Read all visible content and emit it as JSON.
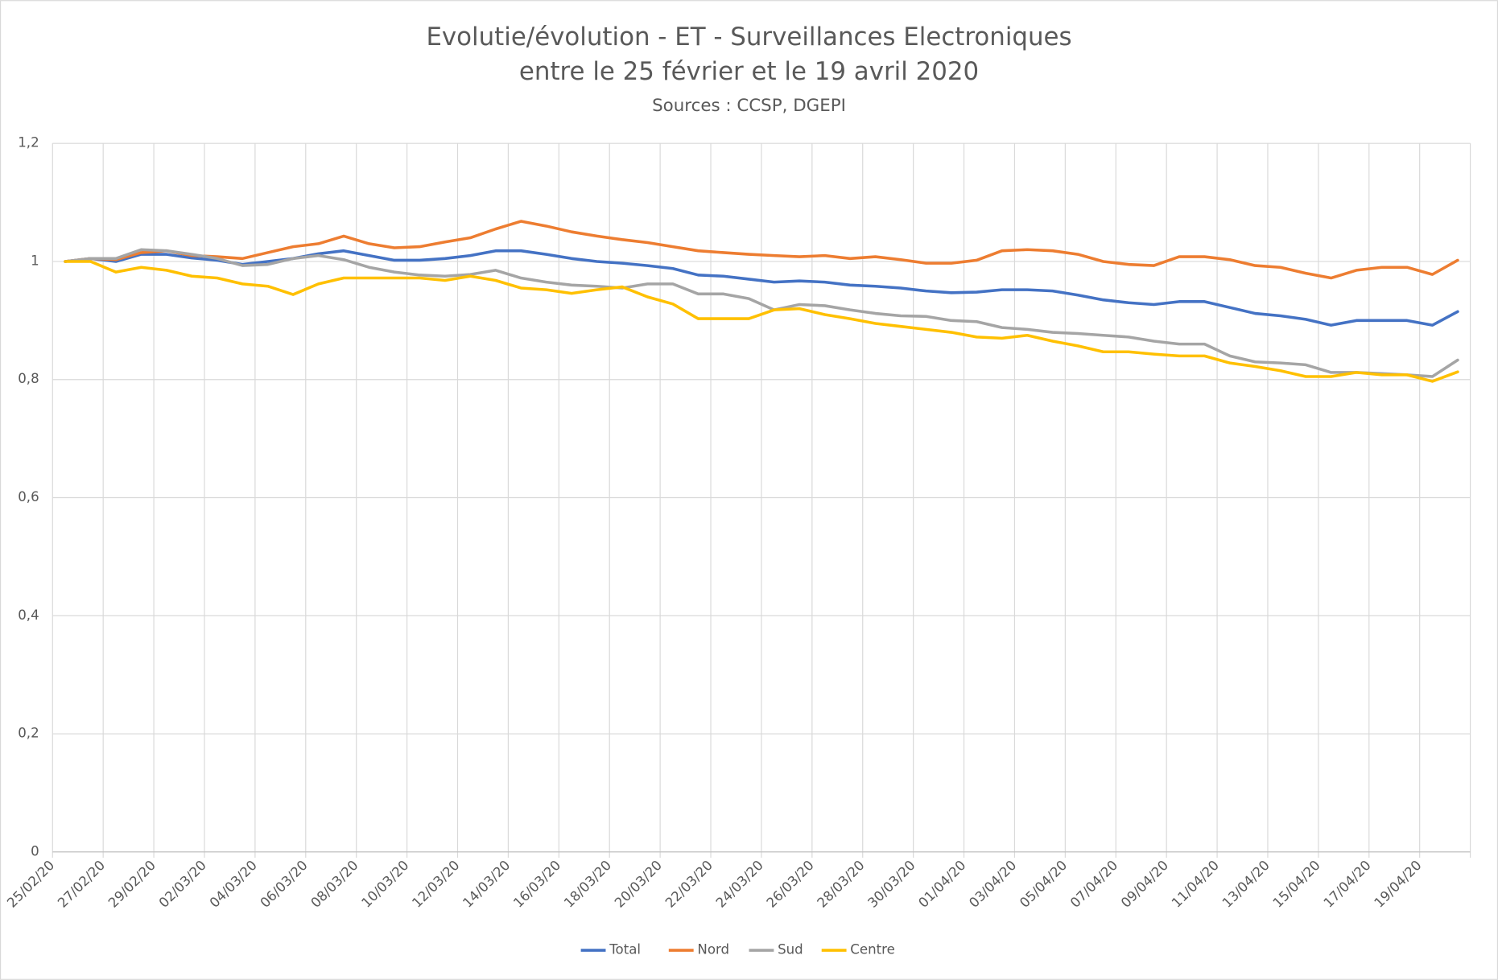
{
  "chart_data": {
    "type": "line",
    "title": [
      "Evolutie/évolution - ET - Surveillances Electroniques",
      "entre le 25 février et le 19 avril 2020"
    ],
    "subtitle": "Sources : CCSP, DGEPI",
    "categories": [
      "25/02/20",
      null,
      "27/02/20",
      null,
      "29/02/20",
      null,
      "02/03/20",
      null,
      "04/03/20",
      null,
      "06/03/20",
      null,
      "08/03/20",
      null,
      "10/03/20",
      null,
      "12/03/20",
      null,
      "14/03/20",
      null,
      "16/03/20",
      null,
      "18/03/20",
      null,
      "20/03/20",
      null,
      "22/03/20",
      null,
      "24/03/20",
      null,
      "26/03/20",
      null,
      "28/03/20",
      null,
      "30/03/20",
      null,
      "01/04/20",
      null,
      "03/04/20",
      null,
      "05/04/20",
      null,
      "07/04/20",
      null,
      "09/04/20",
      null,
      "11/04/20",
      null,
      "13/04/20",
      null,
      "15/04/20",
      null,
      "17/04/20",
      null,
      "19/04/20",
      null
    ],
    "series": [
      {
        "name": "Total",
        "color": "#4472c4",
        "values": [
          1.0,
          1.005,
          1.0,
          1.012,
          1.012,
          1.006,
          1.002,
          0.995,
          1.0,
          1.005,
          1.013,
          1.018,
          1.01,
          1.002,
          1.002,
          1.005,
          1.01,
          1.018,
          1.018,
          1.012,
          1.005,
          1.0,
          0.997,
          0.993,
          0.988,
          0.977,
          0.975,
          0.97,
          0.965,
          0.967,
          0.965,
          0.96,
          0.958,
          0.955,
          0.95,
          0.947,
          0.948,
          0.952,
          0.952,
          0.95,
          0.943,
          0.935,
          0.93,
          0.927,
          0.932,
          0.932,
          0.922,
          0.912,
          0.908,
          0.902,
          0.892,
          0.9,
          0.9,
          0.9,
          0.892,
          0.915
        ]
      },
      {
        "name": "Nord",
        "color": "#ed7d31",
        "values": [
          1.0,
          1.005,
          1.003,
          1.015,
          1.018,
          1.01,
          1.008,
          1.005,
          1.015,
          1.025,
          1.03,
          1.043,
          1.03,
          1.023,
          1.025,
          1.033,
          1.04,
          1.055,
          1.068,
          1.06,
          1.05,
          1.043,
          1.037,
          1.032,
          1.025,
          1.018,
          1.015,
          1.012,
          1.01,
          1.008,
          1.01,
          1.005,
          1.008,
          1.003,
          0.997,
          0.997,
          1.002,
          1.018,
          1.02,
          1.018,
          1.012,
          1.0,
          0.995,
          0.993,
          1.008,
          1.008,
          1.003,
          0.993,
          0.99,
          0.98,
          0.972,
          0.985,
          0.99,
          0.99,
          0.978,
          1.002
        ]
      },
      {
        "name": "Sud",
        "color": "#a5a5a5",
        "values": [
          1.0,
          1.005,
          1.005,
          1.02,
          1.018,
          1.012,
          1.005,
          0.993,
          0.995,
          1.005,
          1.01,
          1.003,
          0.99,
          0.982,
          0.977,
          0.975,
          0.978,
          0.985,
          0.972,
          0.965,
          0.96,
          0.958,
          0.955,
          0.962,
          0.962,
          0.945,
          0.945,
          0.937,
          0.918,
          0.927,
          0.925,
          0.918,
          0.912,
          0.908,
          0.907,
          0.9,
          0.898,
          0.888,
          0.885,
          0.88,
          0.878,
          0.875,
          0.872,
          0.865,
          0.86,
          0.86,
          0.84,
          0.83,
          0.828,
          0.825,
          0.812,
          0.812,
          0.81,
          0.808,
          0.805,
          0.833
        ]
      },
      {
        "name": "Centre",
        "color": "#ffc000",
        "values": [
          1.0,
          1.0,
          0.982,
          0.99,
          0.985,
          0.975,
          0.972,
          0.962,
          0.958,
          0.944,
          0.962,
          0.972,
          0.972,
          0.972,
          0.972,
          0.968,
          0.975,
          0.968,
          0.955,
          0.952,
          0.946,
          0.952,
          0.957,
          0.94,
          0.928,
          0.903,
          0.903,
          0.903,
          0.918,
          0.92,
          0.91,
          0.903,
          0.895,
          0.89,
          0.885,
          0.88,
          0.872,
          0.87,
          0.875,
          0.865,
          0.857,
          0.847,
          0.847,
          0.843,
          0.84,
          0.84,
          0.828,
          0.822,
          0.815,
          0.805,
          0.805,
          0.812,
          0.808,
          0.808,
          0.797,
          0.813
        ]
      }
    ],
    "ylim": [
      0,
      1.2
    ],
    "yticks": [
      0,
      {
        "value": 0.2,
        "label": "0,2"
      },
      {
        "value": 0.4,
        "label": "0,4"
      },
      {
        "value": 0.6,
        "label": "0,6"
      },
      {
        "value": 0.8,
        "label": "0,8"
      },
      1,
      {
        "value": 1.2,
        "label": "1,2"
      }
    ],
    "grid": true,
    "legend": "bottom"
  }
}
